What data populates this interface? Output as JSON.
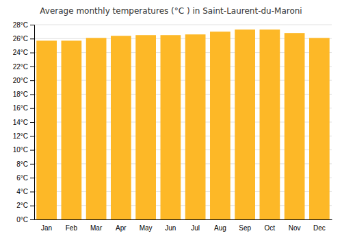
{
  "chart_data": {
    "type": "bar",
    "title": "Average monthly temperatures (°C ) in Saint-Laurent-du-Maroni",
    "categories": [
      "Jan",
      "Feb",
      "Mar",
      "Apr",
      "May",
      "Jun",
      "Jul",
      "Aug",
      "Sep",
      "Oct",
      "Nov",
      "Dec"
    ],
    "values": [
      25.7,
      25.7,
      26.1,
      26.4,
      26.5,
      26.5,
      26.6,
      27.0,
      27.3,
      27.3,
      26.8,
      26.1
    ],
    "color": "#FDB827",
    "ylim": [
      0,
      28
    ],
    "yticks": [
      {
        "value": 0,
        "label": "0°C"
      },
      {
        "value": 2,
        "label": "2°C"
      },
      {
        "value": 4,
        "label": "4°C"
      },
      {
        "value": 6,
        "label": "6°C"
      },
      {
        "value": 8,
        "label": "8°C"
      },
      {
        "value": 10,
        "label": "10°C"
      },
      {
        "value": 12,
        "label": "12°C"
      },
      {
        "value": 14,
        "label": "14°C"
      },
      {
        "value": 16,
        "label": "16°C"
      },
      {
        "value": 18,
        "label": "18°C"
      },
      {
        "value": 20,
        "label": "20°C"
      },
      {
        "value": 22,
        "label": "22°C"
      },
      {
        "value": 24,
        "label": "24°C"
      },
      {
        "value": 26,
        "label": "26°C"
      },
      {
        "value": 28,
        "label": "28°C"
      }
    ],
    "grid": true
  }
}
